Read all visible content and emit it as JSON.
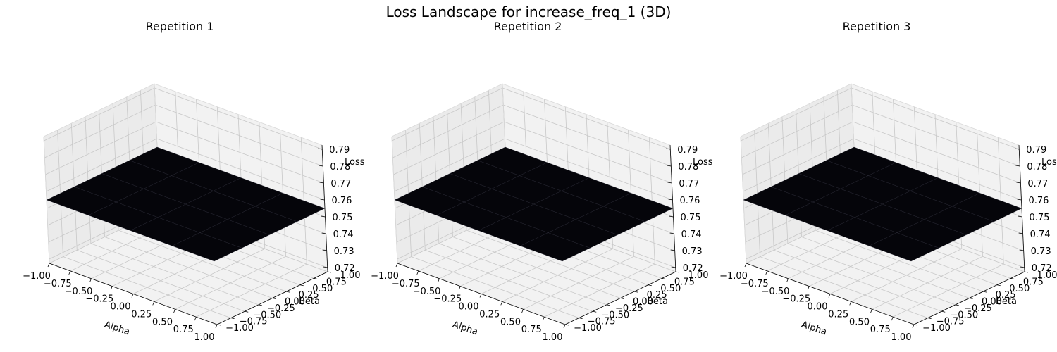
{
  "figure": {
    "title": "Loss Landscape for increase_freq_1 (3D)"
  },
  "chart_data": [
    {
      "type": "surface3d",
      "title": "Repetition 1",
      "xlabel": "Alpha",
      "ylabel": "Beta",
      "zlabel": "Loss",
      "xlim": [
        -1,
        1
      ],
      "ylim": [
        -1,
        1
      ],
      "zlim": [
        0.7175,
        0.7925
      ],
      "xticks": [
        "−1.00",
        "−0.75",
        "−0.50",
        "−0.25",
        "0.00",
        "0.25",
        "0.50",
        "0.75",
        "1.00"
      ],
      "yticks": [
        "−1.00",
        "−0.75",
        "−0.50",
        "−0.25",
        "0.00",
        "0.25",
        "0.50",
        "0.75",
        "1.00"
      ],
      "zticks": [
        "0.72",
        "0.73",
        "0.74",
        "0.75",
        "0.76",
        "0.77",
        "0.78",
        "0.79"
      ],
      "grid": true,
      "surface": {
        "x": [
          -1,
          -0.5,
          0,
          0.5,
          1
        ],
        "y": [
          -1,
          -0.5,
          0,
          0.5,
          1
        ],
        "z_constant": 0.755,
        "color": "#05050a"
      }
    },
    {
      "type": "surface3d",
      "title": "Repetition 2",
      "xlabel": "Alpha",
      "ylabel": "Beta",
      "zlabel": "Loss",
      "xlim": [
        -1,
        1
      ],
      "ylim": [
        -1,
        1
      ],
      "zlim": [
        0.7175,
        0.7925
      ],
      "xticks": [
        "−1.00",
        "−0.75",
        "−0.50",
        "−0.25",
        "0.00",
        "0.25",
        "0.50",
        "0.75",
        "1.00"
      ],
      "yticks": [
        "−1.00",
        "−0.75",
        "−0.50",
        "−0.25",
        "0.00",
        "0.25",
        "0.50",
        "0.75",
        "1.00"
      ],
      "zticks": [
        "0.72",
        "0.73",
        "0.74",
        "0.75",
        "0.76",
        "0.77",
        "0.78",
        "0.79"
      ],
      "grid": true,
      "surface": {
        "x": [
          -1,
          -0.5,
          0,
          0.5,
          1
        ],
        "y": [
          -1,
          -0.5,
          0,
          0.5,
          1
        ],
        "z_constant": 0.755,
        "color": "#05050a"
      }
    },
    {
      "type": "surface3d",
      "title": "Repetition 3",
      "xlabel": "Alpha",
      "ylabel": "Beta",
      "zlabel": "Loss",
      "xlim": [
        -1,
        1
      ],
      "ylim": [
        -1,
        1
      ],
      "zlim": [
        0.7175,
        0.7925
      ],
      "xticks": [
        "−1.00",
        "−0.75",
        "−0.50",
        "−0.25",
        "0.00",
        "0.25",
        "0.50",
        "0.75",
        "1.00"
      ],
      "yticks": [
        "−1.00",
        "−0.75",
        "−0.50",
        "−0.25",
        "0.00",
        "0.25",
        "0.50",
        "0.75",
        "1.00"
      ],
      "zticks": [
        "0.72",
        "0.73",
        "0.74",
        "0.75",
        "0.76",
        "0.77",
        "0.78",
        "0.79"
      ],
      "grid": true,
      "surface": {
        "x": [
          -1,
          -0.5,
          0,
          0.5,
          1
        ],
        "y": [
          -1,
          -0.5,
          0,
          0.5,
          1
        ],
        "z_constant": 0.755,
        "color": "#05050a"
      }
    }
  ]
}
